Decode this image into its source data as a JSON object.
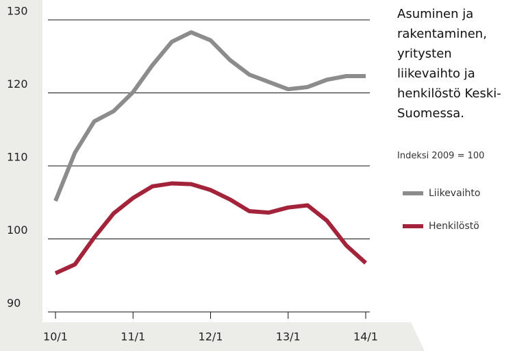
{
  "chart_data": {
    "type": "line",
    "title": "Asuminen ja rakentaminen, yritysten liikevaihto ja henkilöstö Keski-Suomessa.",
    "subtitle": "Indeksi 2009 = 100",
    "categories": [
      "10/1",
      null,
      null,
      null,
      "11/1",
      null,
      null,
      null,
      "12/1",
      null,
      null,
      null,
      "13/1",
      null,
      null,
      null,
      "14/1"
    ],
    "series": [
      {
        "name": "Liikevaihto",
        "color": "#8c8c8c",
        "values": [
          105.2,
          111.8,
          116.1,
          117.5,
          120.1,
          123.8,
          127.0,
          128.3,
          127.2,
          124.5,
          122.5,
          121.5,
          120.5,
          120.8,
          121.8,
          122.3,
          122.3
        ]
      },
      {
        "name": "Henkilöstö",
        "color": "#a3243a",
        "values": [
          95.3,
          96.5,
          100.2,
          103.5,
          105.6,
          107.2,
          107.6,
          107.5,
          106.7,
          105.4,
          103.8,
          103.6,
          104.3,
          104.6,
          102.5,
          99.1,
          96.7
        ]
      }
    ],
    "ylim": [
      90,
      130
    ],
    "yticks": [
      90,
      100,
      110,
      120,
      130
    ],
    "grid": true
  }
}
